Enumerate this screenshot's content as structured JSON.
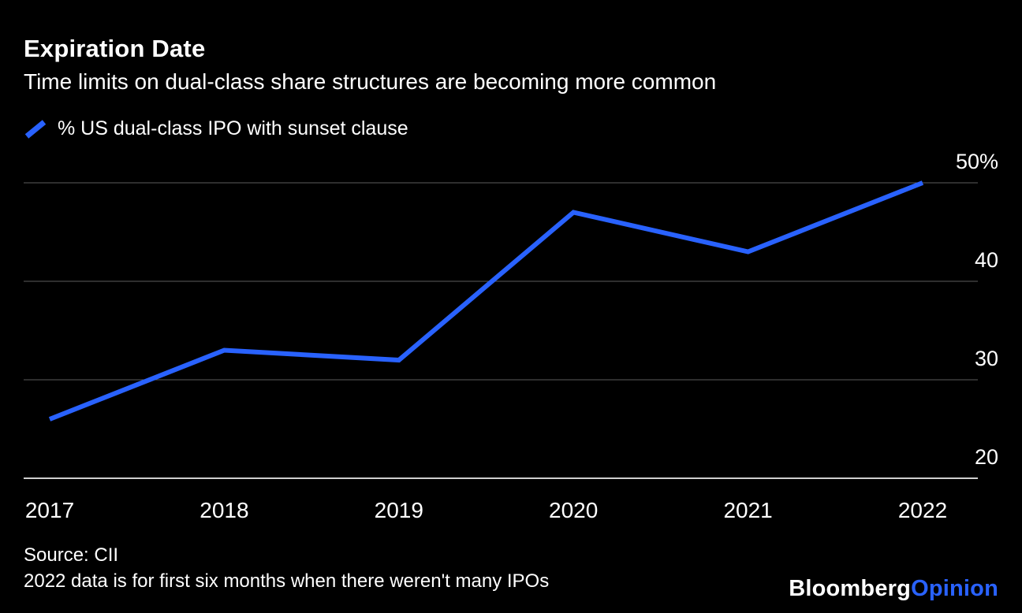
{
  "header": {
    "title": "Expiration Date",
    "subtitle": "Time limits on dual-class share structures are becoming more common"
  },
  "legend": {
    "label": "% US dual-class IPO with sunset clause",
    "color": "#2962FF"
  },
  "chart_data": {
    "type": "line",
    "title": "Expiration Date",
    "subtitle": "Time limits on dual-class share structures are becoming more common",
    "categories": [
      "2017",
      "2018",
      "2019",
      "2020",
      "2021",
      "2022"
    ],
    "series": [
      {
        "name": "% US dual-class IPO with sunset clause",
        "values": [
          26,
          33,
          32,
          47,
          43,
          50
        ]
      }
    ],
    "xlabel": "",
    "ylabel": "% US dual-class IPO with sunset clause",
    "ylim": [
      20,
      52
    ],
    "yticks": [
      20,
      30,
      40,
      50
    ],
    "ytick_labels": [
      "20",
      "30",
      "40",
      "50%"
    ],
    "grid": true,
    "legend_position": "top-left",
    "line_color": "#2962FF",
    "gridline_color": "#5c5c5c",
    "axisline_color": "#cfcfcf",
    "background_color": "#000000"
  },
  "footer": {
    "source": "Source: CII",
    "note": "2022 data is for first six months when there weren't many IPOs",
    "brand": {
      "bloomberg": "Bloomberg",
      "opinion": "Opinion",
      "opinion_color": "#2962FF"
    }
  }
}
